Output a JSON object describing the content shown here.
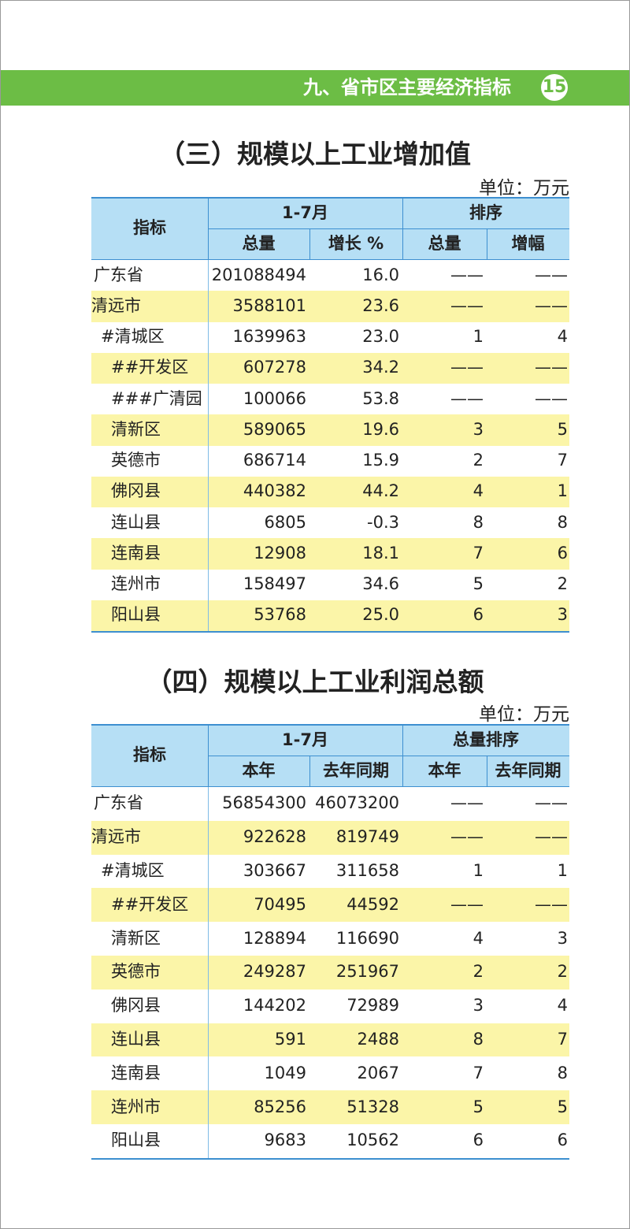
{
  "header": {
    "section": "九、省市区主要经济指标",
    "page": "15"
  },
  "tables": [
    {
      "title": "（三）规模以上工业增加值",
      "unit": "单位：万元",
      "indicator": "指标",
      "group1": "1-7月",
      "group2": "排序",
      "sub": [
        "总量",
        "增长 %",
        "总量",
        "增幅"
      ],
      "rows": [
        [
          "广东省",
          "201088494",
          "16.0",
          "——",
          "——"
        ],
        [
          "清远市",
          "3588101",
          "23.6",
          "——",
          "——"
        ],
        [
          "#清城区",
          "1639963",
          "23.0",
          "1",
          "4"
        ],
        [
          "##开发区",
          "607278",
          "34.2",
          "——",
          "——"
        ],
        [
          "###广清园",
          "100066",
          "53.8",
          "——",
          "——"
        ],
        [
          "清新区",
          "589065",
          "19.6",
          "3",
          "5"
        ],
        [
          "英德市",
          "686714",
          "15.9",
          "2",
          "7"
        ],
        [
          "佛冈县",
          "440382",
          "44.2",
          "4",
          "1"
        ],
        [
          "连山县",
          "6805",
          "-0.3",
          "8",
          "8"
        ],
        [
          "连南县",
          "12908",
          "18.1",
          "7",
          "6"
        ],
        [
          "连州市",
          "158497",
          "34.6",
          "5",
          "2"
        ],
        [
          "阳山县",
          "53768",
          "25.0",
          "6",
          "3"
        ]
      ]
    },
    {
      "title": "（四）规模以上工业利润总额",
      "unit": "单位：万元",
      "indicator": "指标",
      "group1": "1-7月",
      "group2": "总量排序",
      "sub": [
        "本年",
        "去年同期",
        "本年",
        "去年同期"
      ],
      "rows": [
        [
          "广东省",
          "56854300",
          "46073200",
          "——",
          "——"
        ],
        [
          "清远市",
          "922628",
          "819749",
          "——",
          "——"
        ],
        [
          "#清城区",
          "303667",
          "311658",
          "1",
          "1"
        ],
        [
          "##开发区",
          "70495",
          "44592",
          "——",
          "——"
        ],
        [
          "清新区",
          "128894",
          "116690",
          "4",
          "3"
        ],
        [
          "英德市",
          "249287",
          "251967",
          "2",
          "2"
        ],
        [
          "佛冈县",
          "144202",
          "72989",
          "3",
          "4"
        ],
        [
          "连山县",
          "591",
          "2488",
          "8",
          "7"
        ],
        [
          "连南县",
          "1049",
          "2067",
          "7",
          "8"
        ],
        [
          "连州市",
          "85256",
          "51328",
          "5",
          "5"
        ],
        [
          "阳山县",
          "9683",
          "10562",
          "6",
          "6"
        ]
      ]
    }
  ]
}
